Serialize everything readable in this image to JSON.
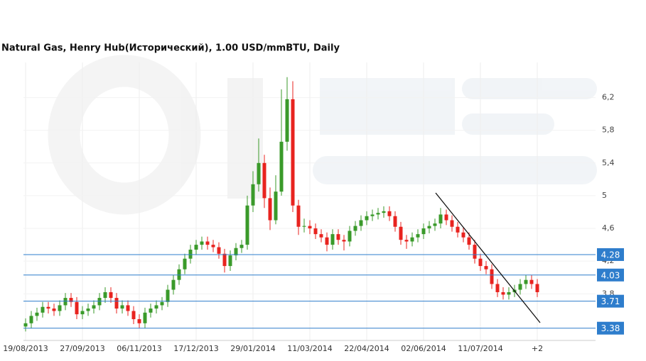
{
  "chart_data": {
    "type": "candlestick",
    "title": "Natural Gas, Henry Hub(Исторический), 1.00 USD/mmBTU, Daily",
    "categories": [
      "19/08/2013",
      null,
      null,
      null,
      null,
      null,
      null,
      null,
      null,
      null,
      "27/09/2013",
      null,
      null,
      null,
      null,
      null,
      null,
      null,
      null,
      null,
      "06/11/2013",
      null,
      null,
      null,
      null,
      null,
      null,
      null,
      null,
      null,
      "17/12/2013",
      null,
      null,
      null,
      null,
      null,
      null,
      null,
      null,
      null,
      "29/01/2014",
      null,
      null,
      null,
      null,
      null,
      null,
      null,
      null,
      null,
      "11/03/2014",
      null,
      null,
      null,
      null,
      null,
      null,
      null,
      null,
      null,
      "22/04/2014",
      null,
      null,
      null,
      null,
      null,
      null,
      null,
      null,
      null,
      "02/06/2014",
      null,
      null,
      null,
      null,
      null,
      null,
      null,
      null,
      null,
      "11/07/2014",
      null,
      null,
      null,
      null,
      null,
      null,
      null,
      null,
      null,
      "+2"
    ],
    "open": [
      3.4,
      3.44,
      3.53,
      3.57,
      3.64,
      3.62,
      3.59,
      3.66,
      3.75,
      3.7,
      3.55,
      3.59,
      3.62,
      3.66,
      3.75,
      3.82,
      3.75,
      3.62,
      3.66,
      3.59,
      3.49,
      3.44,
      3.57,
      3.62,
      3.66,
      3.7,
      3.85,
      3.97,
      4.1,
      4.23,
      4.34,
      4.4,
      4.44,
      4.4,
      4.37,
      4.29,
      4.14,
      4.27,
      4.36,
      4.4,
      4.88,
      5.14,
      5.4,
      4.97,
      4.7,
      5.05,
      5.66,
      6.18,
      4.88,
      4.62,
      4.63,
      4.6,
      4.53,
      4.49,
      4.4,
      4.53,
      4.46,
      4.44,
      4.57,
      4.63,
      4.7,
      4.75,
      4.77,
      4.79,
      4.81,
      4.75,
      4.62,
      4.46,
      4.44,
      4.49,
      4.53,
      4.6,
      4.63,
      4.66,
      4.77,
      4.7,
      4.62,
      4.55,
      4.49,
      4.4,
      4.23,
      4.14,
      4.1,
      3.92,
      3.82,
      3.79,
      3.82,
      3.85,
      3.92,
      3.97,
      3.92
    ],
    "high": [
      3.5,
      3.59,
      3.63,
      3.7,
      3.7,
      3.68,
      3.72,
      3.81,
      3.81,
      3.76,
      3.65,
      3.68,
      3.72,
      3.81,
      3.88,
      3.88,
      3.81,
      3.72,
      3.72,
      3.65,
      3.55,
      3.63,
      3.68,
      3.72,
      3.76,
      3.91,
      4.03,
      4.16,
      4.29,
      4.4,
      4.46,
      4.5,
      4.5,
      4.46,
      4.43,
      4.35,
      4.33,
      4.42,
      4.46,
      5.0,
      5.3,
      5.7,
      5.5,
      5.1,
      5.25,
      6.3,
      6.45,
      6.4,
      4.95,
      4.72,
      4.7,
      4.66,
      4.59,
      4.55,
      4.59,
      4.59,
      4.52,
      4.63,
      4.69,
      4.76,
      4.81,
      4.83,
      4.85,
      4.87,
      4.87,
      4.81,
      4.68,
      4.52,
      4.55,
      4.59,
      4.66,
      4.69,
      4.72,
      4.85,
      4.83,
      4.76,
      4.68,
      4.61,
      4.55,
      4.46,
      4.29,
      4.2,
      4.16,
      3.98,
      3.88,
      3.88,
      3.91,
      3.98,
      4.03,
      4.03,
      3.98
    ],
    "low": [
      3.34,
      3.38,
      3.47,
      3.51,
      3.56,
      3.53,
      3.53,
      3.6,
      3.64,
      3.49,
      3.49,
      3.53,
      3.56,
      3.6,
      3.69,
      3.69,
      3.56,
      3.56,
      3.53,
      3.43,
      3.38,
      3.38,
      3.51,
      3.56,
      3.6,
      3.64,
      3.79,
      3.91,
      4.04,
      4.17,
      4.28,
      4.34,
      4.34,
      4.31,
      4.23,
      4.06,
      4.08,
      4.21,
      4.3,
      4.34,
      4.8,
      5.05,
      4.85,
      4.58,
      4.65,
      5.0,
      5.55,
      4.8,
      4.52,
      4.55,
      4.53,
      4.47,
      4.43,
      4.32,
      4.34,
      4.4,
      4.33,
      4.38,
      4.51,
      4.57,
      4.64,
      4.69,
      4.71,
      4.73,
      4.69,
      4.56,
      4.4,
      4.35,
      4.38,
      4.43,
      4.47,
      4.54,
      4.57,
      4.6,
      4.64,
      4.56,
      4.49,
      4.43,
      4.34,
      4.17,
      4.08,
      4.04,
      3.86,
      3.76,
      3.73,
      3.73,
      3.76,
      3.79,
      3.86,
      3.86,
      3.76
    ],
    "close": [
      3.44,
      3.53,
      3.57,
      3.64,
      3.62,
      3.59,
      3.66,
      3.75,
      3.7,
      3.55,
      3.59,
      3.62,
      3.66,
      3.75,
      3.82,
      3.75,
      3.62,
      3.66,
      3.59,
      3.49,
      3.44,
      3.57,
      3.62,
      3.66,
      3.7,
      3.85,
      3.97,
      4.1,
      4.23,
      4.34,
      4.4,
      4.44,
      4.4,
      4.37,
      4.29,
      4.14,
      4.27,
      4.36,
      4.4,
      4.88,
      5.14,
      5.4,
      4.97,
      4.7,
      5.05,
      5.66,
      6.18,
      4.88,
      4.62,
      4.63,
      4.6,
      4.53,
      4.49,
      4.4,
      4.53,
      4.46,
      4.44,
      4.57,
      4.63,
      4.7,
      4.75,
      4.77,
      4.79,
      4.81,
      4.75,
      4.62,
      4.46,
      4.44,
      4.49,
      4.53,
      4.6,
      4.63,
      4.66,
      4.77,
      4.7,
      4.62,
      4.55,
      4.49,
      4.4,
      4.23,
      4.14,
      4.1,
      3.92,
      3.82,
      3.79,
      3.82,
      3.85,
      3.92,
      3.97,
      3.92,
      3.82
    ],
    "up_color": "#3a9a2a",
    "down_color": "#e8231f",
    "ylim": [
      3.23,
      6.63
    ],
    "yticks": [
      {
        "value": 6.2,
        "label": "6,2"
      },
      {
        "value": 5.8,
        "label": "5,8"
      },
      {
        "value": 5.4,
        "label": "5,4"
      },
      5,
      {
        "value": 4.6,
        "label": "4,6"
      },
      {
        "value": 4.2,
        "label": "4,2"
      },
      {
        "value": 3.8,
        "label": "3,8"
      }
    ],
    "levels": [
      4.28,
      4.03,
      3.71,
      3.38
    ],
    "level_color": "#2e7dcc",
    "grid": true
  }
}
